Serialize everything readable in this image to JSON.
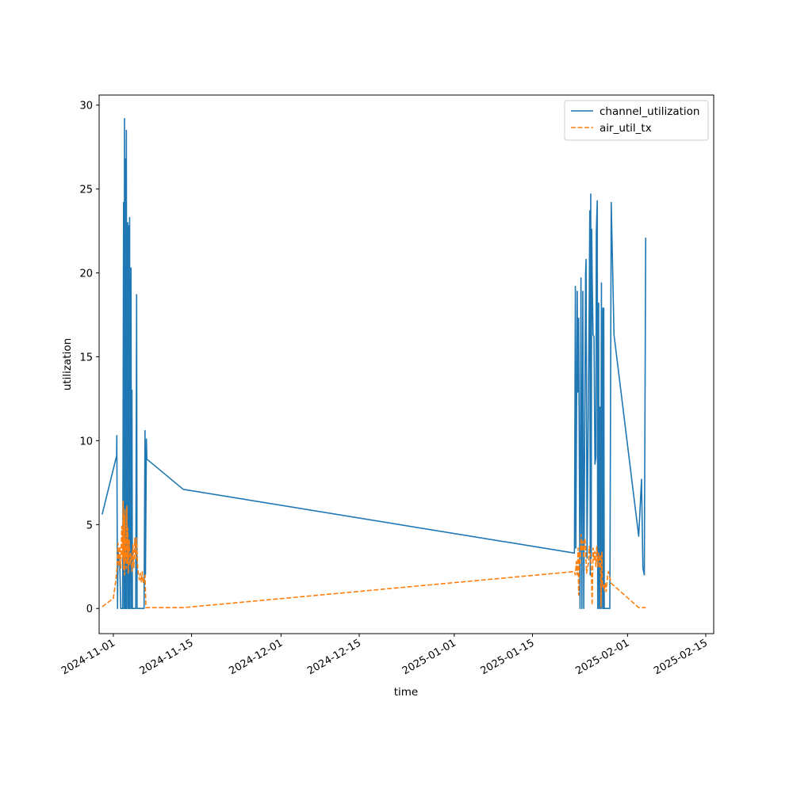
{
  "colors": {
    "channel_utilization": "#1f77b4",
    "air_util_tx": "#ff7f0e"
  },
  "chart_data": {
    "type": "line",
    "title": "",
    "xlabel": "time",
    "ylabel": "utilization",
    "xlim": [
      "2024-10-29T11:00",
      "2025-02-16T10:00"
    ],
    "ylim": [
      -1.5,
      30.6
    ],
    "grid": false,
    "legend_position": "top-right",
    "x_ticks": [
      "2024-11-01",
      "2024-11-15",
      "2024-12-01",
      "2024-12-15",
      "2025-01-01",
      "2025-01-15",
      "2025-02-01",
      "2025-02-15"
    ],
    "y_ticks": [
      0,
      5,
      10,
      15,
      20,
      25,
      30
    ],
    "series": [
      {
        "name": "channel_utilization",
        "style": "solid",
        "points": [
          [
            "2024-10-30T00:00",
            5.6
          ],
          [
            "2024-11-01T14:00",
            9.1
          ],
          [
            "2024-11-01T15:00",
            10.3
          ],
          [
            "2024-11-01T18:00",
            0.0
          ],
          [
            "2024-11-01T20:00",
            3.5
          ],
          [
            "2024-11-02T04:00",
            2.5
          ],
          [
            "2024-11-02T08:00",
            0.0
          ],
          [
            "2024-11-02T16:00",
            0.0
          ],
          [
            "2024-11-02T20:00",
            24.2
          ],
          [
            "2024-11-02T22:00",
            0.0
          ],
          [
            "2024-11-03T00:00",
            29.2
          ],
          [
            "2024-11-03T02:00",
            0.0
          ],
          [
            "2024-11-03T04:00",
            26.8
          ],
          [
            "2024-11-03T06:00",
            0.0
          ],
          [
            "2024-11-03T08:00",
            28.5
          ],
          [
            "2024-11-03T10:00",
            0.0
          ],
          [
            "2024-11-03T14:00",
            23.0
          ],
          [
            "2024-11-03T16:00",
            0.0
          ],
          [
            "2024-11-03T18:00",
            22.8
          ],
          [
            "2024-11-03T20:00",
            0.0
          ],
          [
            "2024-11-03T22:00",
            23.3
          ],
          [
            "2024-11-04T00:00",
            0.0
          ],
          [
            "2024-11-04T04:00",
            20.3
          ],
          [
            "2024-11-04T06:00",
            0.0
          ],
          [
            "2024-11-04T08:00",
            13.0
          ],
          [
            "2024-11-04T10:00",
            0.0
          ],
          [
            "2024-11-05T00:00",
            0.0
          ],
          [
            "2024-11-05T04:00",
            18.7
          ],
          [
            "2024-11-05T06:00",
            0.0
          ],
          [
            "2024-11-06T12:00",
            0.0
          ],
          [
            "2024-11-06T16:00",
            10.6
          ],
          [
            "2024-11-06T18:00",
            2.0
          ],
          [
            "2024-11-06T22:00",
            10.1
          ],
          [
            "2024-11-07T00:00",
            8.9
          ],
          [
            "2024-11-13T12:00",
            7.1
          ],
          [
            "2025-01-22T12:00",
            3.3
          ],
          [
            "2025-01-22T16:00",
            19.2
          ],
          [
            "2025-01-22T18:00",
            3.6
          ],
          [
            "2025-01-23T00:00",
            18.9
          ],
          [
            "2025-01-23T02:00",
            12.9
          ],
          [
            "2025-01-23T06:00",
            17.3
          ],
          [
            "2025-01-23T12:00",
            0.0
          ],
          [
            "2025-01-23T16:00",
            19.7
          ],
          [
            "2025-01-23T20:00",
            0.0
          ],
          [
            "2025-01-24T00:00",
            18.9
          ],
          [
            "2025-01-24T04:00",
            0.0
          ],
          [
            "2025-01-24T12:00",
            20.0
          ],
          [
            "2025-01-24T14:00",
            20.8
          ],
          [
            "2025-01-24T18:00",
            3.0
          ],
          [
            "2025-01-25T04:00",
            19.0
          ],
          [
            "2025-01-25T06:00",
            23.7
          ],
          [
            "2025-01-25T08:00",
            2.0
          ],
          [
            "2025-01-25T10:00",
            24.7
          ],
          [
            "2025-01-25T12:00",
            3.0
          ],
          [
            "2025-01-25T14:00",
            22.6
          ],
          [
            "2025-01-25T16:00",
            20.0
          ],
          [
            "2025-01-25T20:00",
            16.3
          ],
          [
            "2025-01-26T00:00",
            16.2
          ],
          [
            "2025-01-26T04:00",
            8.6
          ],
          [
            "2025-01-26T08:00",
            9.0
          ],
          [
            "2025-01-26T10:00",
            22.4
          ],
          [
            "2025-01-26T14:00",
            24.3
          ],
          [
            "2025-01-26T16:00",
            0.0
          ],
          [
            "2025-01-26T20:00",
            18.2
          ],
          [
            "2025-01-26T22:00",
            0.0
          ],
          [
            "2025-01-27T02:00",
            12.0
          ],
          [
            "2025-01-27T04:00",
            0.0
          ],
          [
            "2025-01-27T08:00",
            19.4
          ],
          [
            "2025-01-27T10:00",
            0.0
          ],
          [
            "2025-01-27T12:00",
            9.4
          ],
          [
            "2025-01-27T14:00",
            17.9
          ],
          [
            "2025-01-27T16:00",
            0.0
          ],
          [
            "2025-01-27T18:00",
            17.9
          ],
          [
            "2025-01-27T20:00",
            0.0
          ],
          [
            "2025-01-28T20:00",
            0.0
          ],
          [
            "2025-01-29T02:00",
            24.2
          ],
          [
            "2025-01-29T14:00",
            16.3
          ],
          [
            "2025-02-03T00:00",
            4.3
          ],
          [
            "2025-02-03T12:00",
            7.7
          ],
          [
            "2025-02-03T18:00",
            2.4
          ],
          [
            "2025-02-04T00:00",
            2.0
          ],
          [
            "2025-02-04T06:00",
            22.1
          ]
        ]
      },
      {
        "name": "air_util_tx",
        "style": "dashed",
        "points": [
          [
            "2024-10-30T00:00",
            0.1
          ],
          [
            "2024-11-01T00:00",
            0.6
          ],
          [
            "2024-11-01T10:00",
            1.6
          ],
          [
            "2024-11-01T16:00",
            2.4
          ],
          [
            "2024-11-01T20:00",
            3.9
          ],
          [
            "2024-11-02T00:00",
            2.5
          ],
          [
            "2024-11-02T04:00",
            3.7
          ],
          [
            "2024-11-02T08:00",
            2.4
          ],
          [
            "2024-11-02T12:00",
            4.9
          ],
          [
            "2024-11-02T16:00",
            3.0
          ],
          [
            "2024-11-02T18:00",
            6.4
          ],
          [
            "2024-11-02T20:00",
            2.3
          ],
          [
            "2024-11-02T22:00",
            5.5
          ],
          [
            "2024-11-03T00:00",
            2.0
          ],
          [
            "2024-11-03T02:00",
            5.9
          ],
          [
            "2024-11-03T04:00",
            2.9
          ],
          [
            "2024-11-03T06:00",
            4.2
          ],
          [
            "2024-11-03T08:00",
            2.4
          ],
          [
            "2024-11-03T10:00",
            6.1
          ],
          [
            "2024-11-03T12:00",
            2.7
          ],
          [
            "2024-11-03T14:00",
            4.8
          ],
          [
            "2024-11-03T16:00",
            2.1
          ],
          [
            "2024-11-03T20:00",
            4.1
          ],
          [
            "2024-11-04T00:00",
            2.6
          ],
          [
            "2024-11-04T04:00",
            3.3
          ],
          [
            "2024-11-04T08:00",
            2.2
          ],
          [
            "2024-11-04T12:00",
            3.8
          ],
          [
            "2024-11-04T16:00",
            2.4
          ],
          [
            "2024-11-04T20:00",
            4.2
          ],
          [
            "2024-11-05T00:00",
            3.0
          ],
          [
            "2024-11-05T04:00",
            4.2
          ],
          [
            "2024-11-05T08:00",
            2.5
          ],
          [
            "2024-11-05T12:00",
            2.0
          ],
          [
            "2024-11-05T16:00",
            1.7
          ],
          [
            "2024-11-05T20:00",
            2.1
          ],
          [
            "2024-11-06T00:00",
            1.6
          ],
          [
            "2024-11-06T04:00",
            2.2
          ],
          [
            "2024-11-06T08:00",
            1.5
          ],
          [
            "2024-11-06T16:00",
            2.0
          ],
          [
            "2024-11-06T20:00",
            0.05
          ],
          [
            "2024-11-13T12:00",
            0.05
          ],
          [
            "2025-01-22T12:00",
            2.2
          ],
          [
            "2025-01-22T16:00",
            2.0
          ],
          [
            "2025-01-22T20:00",
            2.8
          ],
          [
            "2025-01-23T00:00",
            2.0
          ],
          [
            "2025-01-23T04:00",
            3.6
          ],
          [
            "2025-01-23T06:00",
            0.8
          ],
          [
            "2025-01-23T10:00",
            3.4
          ],
          [
            "2025-01-23T12:00",
            2.6
          ],
          [
            "2025-01-23T16:00",
            4.4
          ],
          [
            "2025-01-23T20:00",
            3.4
          ],
          [
            "2025-01-24T00:00",
            4.0
          ],
          [
            "2025-01-24T04:00",
            3.0
          ],
          [
            "2025-01-24T08:00",
            4.2
          ],
          [
            "2025-01-24T12:00",
            3.7
          ],
          [
            "2025-01-24T16:00",
            2.1
          ],
          [
            "2025-01-25T00:00",
            2.7
          ],
          [
            "2025-01-25T04:00",
            3.7
          ],
          [
            "2025-01-25T08:00",
            3.2
          ],
          [
            "2025-01-25T12:00",
            2.6
          ],
          [
            "2025-01-25T16:00",
            0.2
          ],
          [
            "2025-01-25T20:00",
            3.6
          ],
          [
            "2025-01-26T00:00",
            2.9
          ],
          [
            "2025-01-26T04:00",
            3.4
          ],
          [
            "2025-01-26T08:00",
            2.5
          ],
          [
            "2025-01-26T12:00",
            3.7
          ],
          [
            "2025-01-26T16:00",
            2.5
          ],
          [
            "2025-01-26T20:00",
            3.3
          ],
          [
            "2025-01-27T00:00",
            2.4
          ],
          [
            "2025-01-27T04:00",
            3.2
          ],
          [
            "2025-01-27T06:00",
            0.1
          ],
          [
            "2025-01-27T10:00",
            3.4
          ],
          [
            "2025-01-27T12:00",
            1.3
          ],
          [
            "2025-01-27T16:00",
            1.4
          ],
          [
            "2025-01-27T20:00",
            1.1
          ],
          [
            "2025-01-28T00:00",
            1.5
          ],
          [
            "2025-01-28T04:00",
            1.0
          ],
          [
            "2025-01-28T10:00",
            1.9
          ],
          [
            "2025-01-28T14:00",
            2.2
          ],
          [
            "2025-01-29T02:00",
            1.5
          ],
          [
            "2025-02-03T00:00",
            0.05
          ],
          [
            "2025-02-04T06:00",
            0.05
          ]
        ]
      }
    ]
  }
}
